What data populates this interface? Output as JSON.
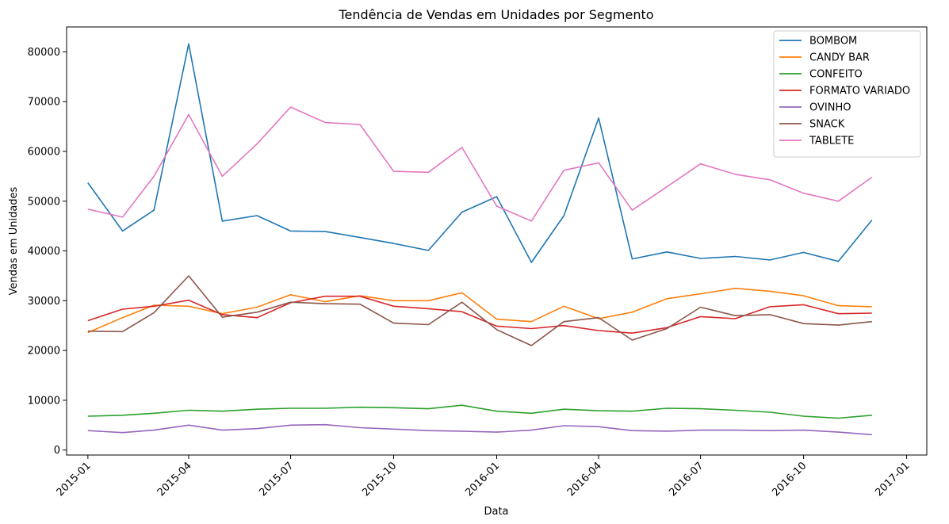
{
  "chart_data": {
    "type": "line",
    "title": "Tendência de Vendas em Unidades por Segmento",
    "xlabel": "Data",
    "ylabel": "Vendas em Unidades",
    "ylim": [
      -1000,
      85000
    ],
    "xlim": [
      "2014-12-13",
      "2017-01-19"
    ],
    "grid": false,
    "legend_position": "top-right",
    "x": [
      "2015-01-01",
      "2015-02-01",
      "2015-03-01",
      "2015-04-01",
      "2015-05-01",
      "2015-06-01",
      "2015-07-01",
      "2015-08-01",
      "2015-09-01",
      "2015-10-01",
      "2015-11-01",
      "2015-12-01",
      "2016-01-01",
      "2016-02-01",
      "2016-03-01",
      "2016-04-01",
      "2016-05-01",
      "2016-06-01",
      "2016-07-01",
      "2016-08-01",
      "2016-09-01",
      "2016-10-01",
      "2016-11-01",
      "2016-12-01"
    ],
    "x_ticks": [
      "2015-01",
      "2015-04",
      "2015-07",
      "2015-10",
      "2016-01",
      "2016-04",
      "2016-07",
      "2016-10",
      "2017-01"
    ],
    "y_ticks": [
      "0",
      "10000",
      "20000",
      "30000",
      "40000",
      "50000",
      "60000",
      "70000",
      "80000"
    ],
    "series": [
      {
        "name": "BOMBOM",
        "color": "#1f77b4",
        "values": [
          53700,
          44000,
          48200,
          81600,
          46000,
          47100,
          44000,
          43900,
          42700,
          41500,
          40100,
          47800,
          50900,
          37700,
          47100,
          66700,
          38400,
          39800,
          38500,
          38900,
          38200,
          39700,
          37900,
          46200
        ]
      },
      {
        "name": "CANDY BAR",
        "color": "#ff7f0e",
        "values": [
          23600,
          26600,
          29100,
          28900,
          27400,
          28700,
          31200,
          29800,
          31000,
          30000,
          30000,
          31600,
          26300,
          25800,
          28900,
          26400,
          27700,
          30400,
          31400,
          32500,
          31900,
          31000,
          29000,
          28800
        ]
      },
      {
        "name": "CONFEITO",
        "color": "#2ca02c",
        "values": [
          6800,
          7000,
          7400,
          8000,
          7800,
          8200,
          8400,
          8400,
          8600,
          8500,
          8300,
          9000,
          7800,
          7400,
          8200,
          7900,
          7800,
          8400,
          8300,
          8000,
          7600,
          6800,
          6400,
          7000
        ]
      },
      {
        "name": "FORMATO VARIADO",
        "color": "#d62728",
        "values": [
          26000,
          28300,
          28900,
          30100,
          27200,
          26600,
          29600,
          30900,
          30900,
          28900,
          28400,
          27800,
          24900,
          24400,
          25000,
          24000,
          23500,
          24600,
          26800,
          26400,
          28800,
          29200,
          27400,
          27500
        ]
      },
      {
        "name": "OVINHO",
        "color": "#9467bd",
        "values": [
          3900,
          3500,
          4000,
          5000,
          4000,
          4300,
          5000,
          5100,
          4500,
          4200,
          3900,
          3800,
          3600,
          4000,
          4900,
          4700,
          3900,
          3800,
          4000,
          4000,
          3900,
          4000,
          3600,
          3100
        ]
      },
      {
        "name": "SNACK",
        "color": "#8c564b",
        "values": [
          23900,
          23800,
          27600,
          35000,
          26700,
          27700,
          29700,
          29400,
          29300,
          25500,
          25200,
          29700,
          24200,
          21000,
          25800,
          26600,
          22100,
          24400,
          28700,
          27000,
          27200,
          25400,
          25100,
          25800
        ]
      },
      {
        "name": "TABLETE",
        "color": "#e377c2",
        "values": [
          48400,
          46800,
          55000,
          67400,
          55000,
          61500,
          68900,
          65800,
          65400,
          56000,
          55800,
          60800,
          49000,
          46000,
          56200,
          57700,
          48200,
          52900,
          57500,
          55400,
          54300,
          51600,
          50000,
          54800
        ]
      }
    ]
  }
}
